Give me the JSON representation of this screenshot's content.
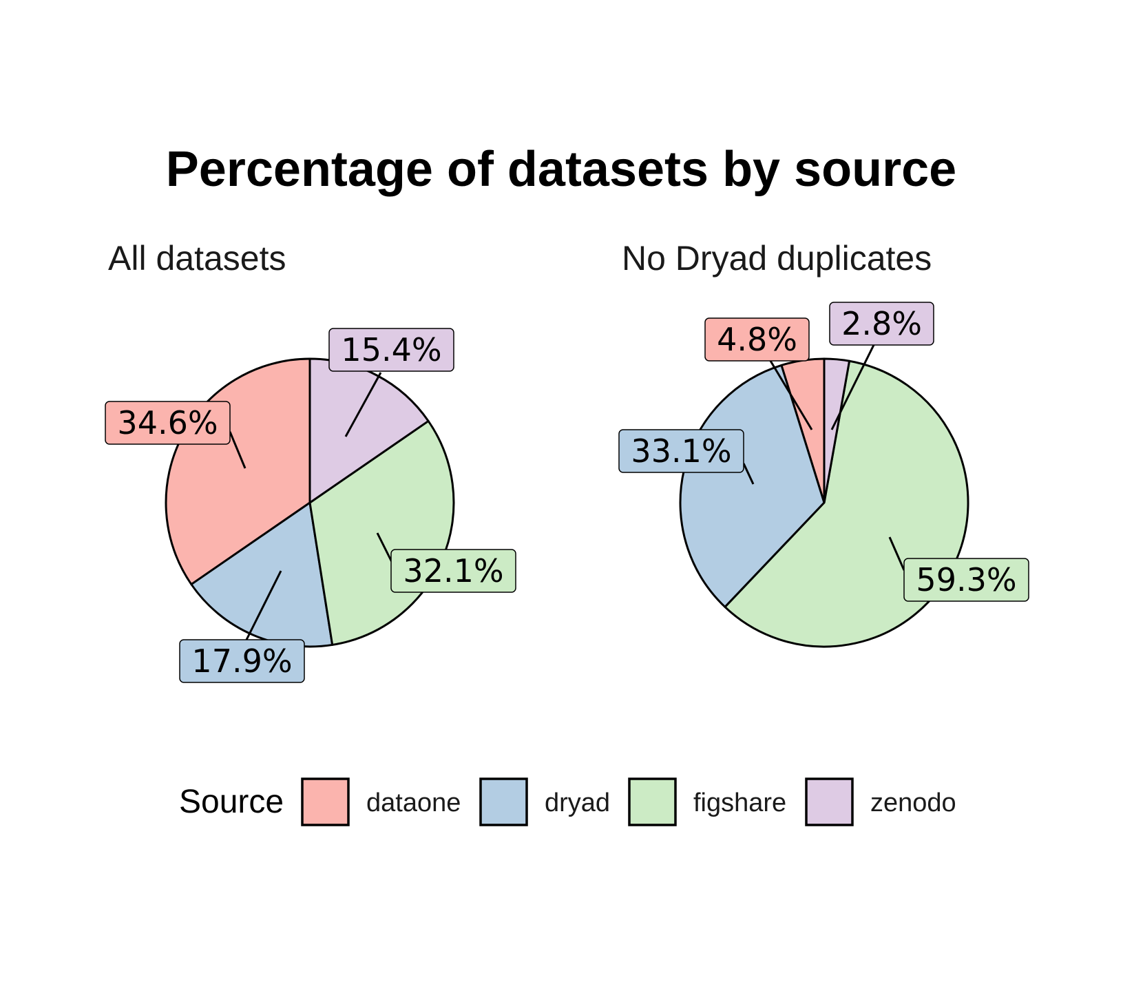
{
  "chart_data": {
    "type": "pie",
    "title": "Percentage of datasets by source",
    "colors": {
      "dataone": "#FBB4AE",
      "dryad": "#B3CDE3",
      "figshare": "#CCEBC5",
      "zenodo": "#DECBE4"
    },
    "legend": {
      "title": "Source",
      "placement": "bottom",
      "items": [
        "dataone",
        "dryad",
        "figshare",
        "zenodo"
      ]
    },
    "charts": [
      {
        "subtitle": "All datasets",
        "slices": [
          {
            "category": "dataone",
            "value": 34.6,
            "label": "34.6%"
          },
          {
            "category": "dryad",
            "value": 17.9,
            "label": "17.9%"
          },
          {
            "category": "figshare",
            "value": 32.1,
            "label": "32.1%"
          },
          {
            "category": "zenodo",
            "value": 15.4,
            "label": "15.4%"
          }
        ]
      },
      {
        "subtitle": "No Dryad duplicates",
        "slices": [
          {
            "category": "dataone",
            "value": 4.8,
            "label": "4.8%"
          },
          {
            "category": "dryad",
            "value": 33.1,
            "label": "33.1%"
          },
          {
            "category": "figshare",
            "value": 59.3,
            "label": "59.3%"
          },
          {
            "category": "zenodo",
            "value": 2.8,
            "label": "2.8%"
          }
        ]
      }
    ]
  }
}
